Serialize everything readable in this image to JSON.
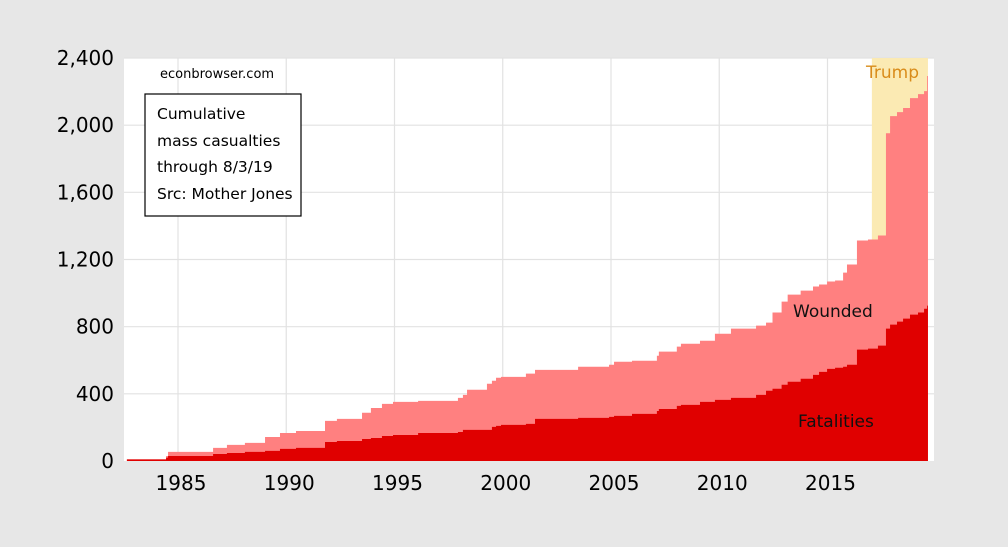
{
  "chart_data": {
    "type": "area",
    "subtype": "stacked-step",
    "source_note": "econbrowser.com",
    "annotation_box": [
      "Cumulative",
      "mass casualties",
      "through 8/3/19",
      "Src: Mother Jones"
    ],
    "xlim": [
      1982.64,
      2019.64
    ],
    "ylim": [
      0,
      2400
    ],
    "x_ticks": [
      "1985",
      "1990",
      "1995",
      "2000",
      "2005",
      "2010",
      "2015"
    ],
    "x_tick_values": [
      1985,
      1990,
      1995,
      2000,
      2005,
      2010,
      2015
    ],
    "y_ticks": [
      "0",
      "400",
      "800",
      "1,200",
      "1,600",
      "2,000",
      "2,400"
    ],
    "y_tick_values": [
      0,
      400,
      800,
      1200,
      1600,
      2000,
      2400
    ],
    "grid": true,
    "series": [
      {
        "name": "Fatalities",
        "label": "Fatalities",
        "color": "#e00000"
      },
      {
        "name": "Wounded",
        "label": "Wounded",
        "color": "#ff8080"
      }
    ],
    "shaded_region": {
      "label": "Trump",
      "from": 2017.05,
      "to": 2019.64,
      "color": "#fbeab3",
      "label_color": "#d98c1a"
    },
    "x": [
      1982.64,
      1984.45,
      1984.54,
      1986.62,
      1987.26,
      1988.09,
      1989.02,
      1989.71,
      1990.45,
      1991.79,
      1992.34,
      1993.5,
      1993.91,
      1994.42,
      1994.93,
      1996.09,
      1997.93,
      1998.16,
      1998.35,
      1999.27,
      1999.5,
      1999.69,
      1999.92,
      2001.07,
      2001.49,
      2003.48,
      2004.91,
      2005.14,
      2005.97,
      2007.12,
      2007.21,
      2008.04,
      2008.23,
      2009.11,
      2009.8,
      2010.54,
      2011.7,
      2012.16,
      2012.46,
      2012.88,
      2013.16,
      2013.76,
      2014.33,
      2014.61,
      2014.98,
      2015.35,
      2015.72,
      2015.9,
      2016.36,
      2016.87,
      2017.33,
      2017.7,
      2017.89,
      2018.21,
      2018.49,
      2018.81,
      2019.18,
      2019.46,
      2019.6
    ],
    "fatalities": [
      10,
      20,
      30,
      42,
      48,
      54,
      60,
      72,
      78,
      113,
      119,
      131,
      137,
      149,
      155,
      167,
      173,
      185,
      185,
      185,
      203,
      209,
      215,
      221,
      251,
      257,
      263,
      269,
      281,
      298,
      310,
      328,
      334,
      352,
      364,
      376,
      394,
      418,
      430,
      454,
      472,
      490,
      513,
      531,
      549,
      555,
      561,
      573,
      663,
      669,
      687,
      788,
      812,
      830,
      848,
      872,
      884,
      907,
      925
    ],
    "total": [
      10,
      30,
      54,
      78,
      96,
      108,
      143,
      167,
      179,
      239,
      251,
      287,
      316,
      340,
      352,
      358,
      376,
      394,
      424,
      460,
      478,
      496,
      501,
      520,
      543,
      561,
      573,
      591,
      597,
      627,
      651,
      681,
      698,
      716,
      758,
      788,
      806,
      824,
      884,
      949,
      991,
      1015,
      1039,
      1051,
      1069,
      1075,
      1122,
      1170,
      1313,
      1319,
      1343,
      1952,
      2054,
      2078,
      2102,
      2161,
      2185,
      2203,
      2293
    ]
  }
}
